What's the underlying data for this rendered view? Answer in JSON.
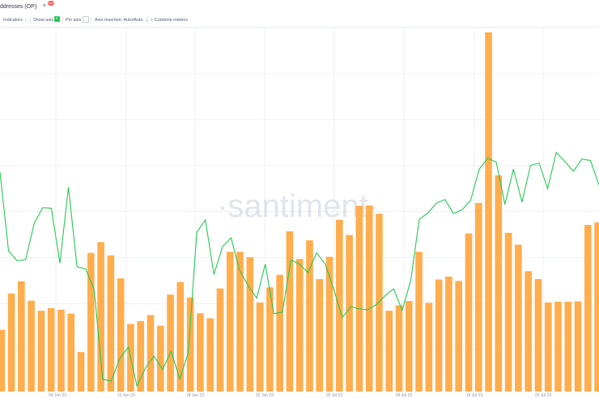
{
  "header": {
    "metric_tab_label": "ddresses (OP)",
    "add_tab_symbol": "+",
    "badge_text": "NEW"
  },
  "toolbar": {
    "indicators_label": "Indicators",
    "show_axis_label": "Show axis",
    "show_axis_checked": true,
    "pin_axis_label": "Pin axis",
    "pin_axis_checked": false,
    "axis_label": "Axis max/min: Auto/Auto",
    "combine_label": "Combine metrics"
  },
  "watermark": "·santiment·",
  "colors": {
    "bar": "#ffad4d",
    "line": "#26c953",
    "grid": "#e9ecf2",
    "check": "#26c953",
    "badge": "#ff5b5b"
  },
  "chart_data": {
    "type": "bar",
    "x_tick_labels": [
      "04 Jun 23",
      "11 Jun 23",
      "18 Jun 23",
      "25 Jun 23",
      "02 Jul 23",
      "09 Jul 23",
      "16 Jul 23",
      "23 Jul 23"
    ],
    "ylim": [
      0,
      100
    ],
    "grid": true,
    "series": [
      {
        "type": "bar",
        "values": [
          17.2,
          27.3,
          30.7,
          25.3,
          22.5,
          23.2,
          22.8,
          21.7,
          11.0,
          38.6,
          41.6,
          37.9,
          31.5,
          18.8,
          19.6,
          21.3,
          18.3,
          27.0,
          30.5,
          26.2,
          21.8,
          20.4,
          28.7,
          38.9,
          38.9,
          37.4,
          24.8,
          29.0,
          32.5,
          44.6,
          36.9,
          42.1,
          31.3,
          37.5,
          47.8,
          43.6,
          51.7,
          51.8,
          49.5,
          22.5,
          24.0,
          25.2,
          38.9,
          24.7,
          31.2,
          32.0,
          30.8,
          44.0,
          52.5,
          100.0,
          60.2,
          44.2,
          40.9,
          33.5,
          31.3,
          24.8,
          25.0,
          25.0,
          25.1,
          46.4,
          47.1,
          34.6,
          40.2
        ]
      },
      {
        "type": "line",
        "values": [
          71.6,
          45.2,
          41.9,
          42.3,
          54.5,
          59.7,
          59.5,
          41.1,
          66.6,
          39.9,
          39.2,
          32.3,
          2.2,
          1.6,
          9.2,
          13.0,
          0.0,
          6.0,
          10.0,
          5.5,
          11.6,
          2.3,
          11.1,
          51.5,
          55.6,
          37.3,
          46.6,
          49.6,
          38.7,
          33.6,
          29.4,
          40.8,
          24.2,
          24.7,
          42.2,
          40.8,
          37.9,
          44.6,
          40.8,
          32.4,
          22.9,
          26.6,
          25.8,
          25.5,
          27.3,
          30.2,
          32.5,
          25.3,
          35.4,
          55.8,
          57.9,
          61.2,
          62.4,
          57.7,
          59.0,
          62.2,
          72.6,
          76.3,
          74.9,
          60.8,
          72.6,
          61.6,
          73.9,
          74.6,
          66.1,
          78.2,
          75.2,
          71.9,
          76.0,
          75.5,
          67.3
        ]
      }
    ]
  }
}
